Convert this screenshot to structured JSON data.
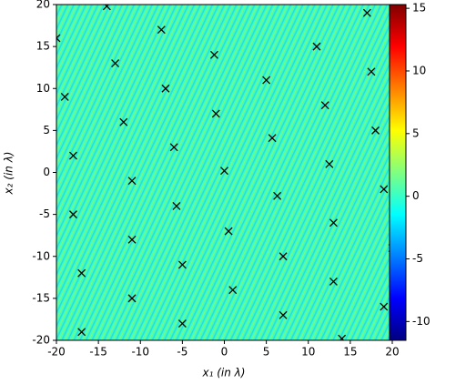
{
  "chart_data": {
    "type": "heatmap",
    "xlabel": "x₁ (in λ)",
    "ylabel": "x₂ (in λ)",
    "xlim": [
      -20,
      20
    ],
    "ylim": [
      -20,
      20
    ],
    "xticks": [
      -20,
      -15,
      -10,
      -5,
      0,
      5,
      10,
      15,
      20
    ],
    "yticks": [
      -20,
      -15,
      -10,
      -5,
      0,
      5,
      10,
      15,
      20
    ],
    "colormap": "jet",
    "clim": [
      -11.5,
      15.3
    ],
    "cticks": [
      -10,
      -5,
      0,
      5,
      10,
      15
    ],
    "markers": {
      "color": "#000000",
      "x": [
        0,
        -1,
        -1.2,
        5,
        5.7,
        6.3,
        0.5,
        -5.7,
        -6,
        -7,
        -7.5,
        -11,
        -12,
        -13,
        -14,
        -18,
        -18,
        -19,
        -20,
        12,
        11,
        17,
        17.5,
        18,
        12.5,
        19,
        13,
        20,
        7,
        1,
        -5,
        -11,
        -17,
        -11,
        -5,
        7,
        13,
        19,
        14,
        -17
      ],
      "y": [
        0.2,
        7,
        14,
        11,
        4.1,
        -2.8,
        -7,
        -4,
        3,
        10,
        17,
        -1,
        6,
        13,
        19.8,
        -5,
        2,
        9,
        16,
        8,
        15,
        19,
        12,
        5,
        1,
        -2,
        -6,
        -9,
        -10,
        -14,
        -11,
        -8,
        -12,
        -15,
        -18,
        -17,
        -13,
        -16,
        -19.8,
        -19
      ]
    }
  }
}
